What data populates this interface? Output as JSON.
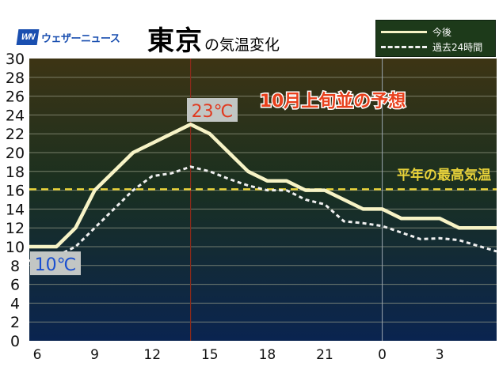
{
  "header": {
    "logo_mark": "WN",
    "logo_text": "ウェザーニュース",
    "title_main": "東京",
    "title_sub": "の気温変化"
  },
  "legend": {
    "items": [
      {
        "label": "今後",
        "style": "solid"
      },
      {
        "label": "過去24時間",
        "style": "dashed"
      }
    ]
  },
  "annotations": {
    "forecast_headline": "10月上旬並の予想",
    "normal_high_label": "平年の最高気温",
    "max_label": "23℃",
    "min_label": "10℃"
  },
  "colors": {
    "forecast_line": "#f7f3c6",
    "past_line": "#f0f0f0",
    "normal_line": "#e8d23a",
    "headline": "#e8401c",
    "max_label_text": "#e03a20",
    "min_label_text": "#1a4fd0",
    "marker_line": "#8a2a1a",
    "bg_top": "#3d3414",
    "bg_mid": "#1a3020",
    "bg_bottom": "#0a2450"
  },
  "chart_data": {
    "type": "line",
    "title": "東京の気温変化",
    "xlabel": "",
    "ylabel": "",
    "ylim": [
      0,
      30
    ],
    "yticks": [
      0,
      2,
      4,
      6,
      8,
      10,
      12,
      14,
      16,
      18,
      20,
      22,
      24,
      26,
      28,
      30
    ],
    "xtick_labels": [
      "6",
      "9",
      "12",
      "15",
      "18",
      "21",
      "0",
      "3"
    ],
    "grid": true,
    "legend_position": "top-right",
    "x": [
      "6",
      "7",
      "8",
      "9",
      "10",
      "11",
      "12",
      "13",
      "14",
      "15",
      "16",
      "17",
      "18",
      "19",
      "20",
      "21",
      "22",
      "23",
      "0",
      "1",
      "2",
      "3",
      "4",
      "5"
    ],
    "series": [
      {
        "name": "今後",
        "style": "solid",
        "values": [
          10,
          10,
          12,
          16,
          18,
          20,
          21,
          22,
          23,
          22,
          20,
          18,
          17,
          17,
          16,
          16,
          15,
          14,
          14,
          13,
          13,
          13,
          12,
          12
        ]
      },
      {
        "name": "過去24時間",
        "style": "dashed",
        "values": [
          8.5,
          9,
          10,
          12,
          14,
          16,
          17.5,
          17.8,
          18.5,
          18,
          17.2,
          16.5,
          16,
          16,
          15,
          14.5,
          12.7,
          12.5,
          12.2,
          11.5,
          10.8,
          10.9,
          10.7,
          9.5
        ]
      }
    ],
    "reference_lines": [
      {
        "name": "平年の最高気温",
        "y": 16.1,
        "style": "dashed"
      }
    ],
    "annotations": [
      {
        "text": "23℃",
        "x": "14",
        "y": 23
      },
      {
        "text": "10℃",
        "x": "6",
        "y": 10
      },
      {
        "text": "10月上旬並の予想"
      }
    ]
  }
}
